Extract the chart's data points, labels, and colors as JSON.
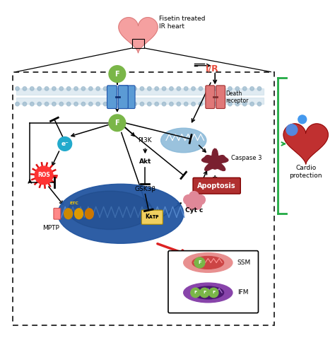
{
  "title": "Fisetin treated\nIR heart",
  "cardio_label": "Cardio\nprotection",
  "ir_label": "I/R",
  "death_receptor_label": "Death\nreceptor",
  "caspase3_label": "Caspase 3",
  "apoptosis_label": "Apoptosis",
  "pi3k_label": "PI3K",
  "akt_label": "Akt",
  "gsk3b_label": "GSK3β",
  "katp_label": "Kᴀᴛᴘ",
  "cytc_label": "Cyt c",
  "ros_label": "ROS",
  "mptp_label": "MPTP",
  "etc_label": "ETC",
  "ssm_label": "SSM",
  "ifm_label": "IFM",
  "f_label": "F",
  "e_label": "e⁻",
  "bg_color": "#ffffff",
  "dashed_box_color": "#333333",
  "green_color": "#7ab648",
  "red_color": "#e74c3c",
  "blue_receptor_color": "#5b9bd5",
  "red_receptor_color": "#e07878",
  "mito_body_color": "#2255a0",
  "mito_wave_color": "#4a8fd4",
  "etc_blob_color": "#cc8800",
  "katp_color": "#f0d060",
  "cytc_color": "#e08898",
  "apop_color": "#b03030",
  "caspase_color": "#7a2030",
  "ssm_outer_color": "#e89090",
  "ssm_inner_color": "#cc4444",
  "ifm_outer_color": "#8844aa",
  "ifm_inner_color": "#5522880",
  "ros_color": "#ff3333",
  "e_circle_color": "#22aacc",
  "membrane_bg": "#c8dce8",
  "membrane_dot": "#9ab8cc",
  "green_bracket": "#22aa44",
  "arrow_red": "#dd2222"
}
